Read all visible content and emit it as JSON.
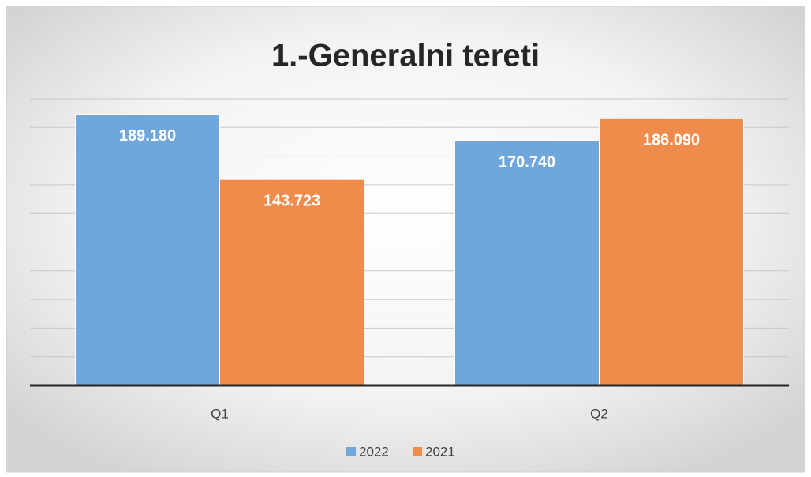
{
  "chart_data": {
    "type": "bar",
    "title": "1.-Generalni tereti",
    "categories": [
      "Q1",
      "Q2"
    ],
    "series": [
      {
        "name": "2022",
        "color": "#6fa6dc",
        "values": [
          189180,
          170740
        ],
        "value_labels": [
          "189.180",
          "170.740"
        ]
      },
      {
        "name": "2021",
        "color": "#ef8c4b",
        "values": [
          143723,
          186090
        ],
        "value_labels": [
          "143.723",
          "186.090"
        ]
      }
    ],
    "ylim": [
      0,
      200000
    ],
    "yticks": [
      0,
      20000,
      40000,
      60000,
      80000,
      100000,
      120000,
      140000,
      160000,
      180000,
      200000
    ],
    "grid": true,
    "legend": "bottom"
  }
}
